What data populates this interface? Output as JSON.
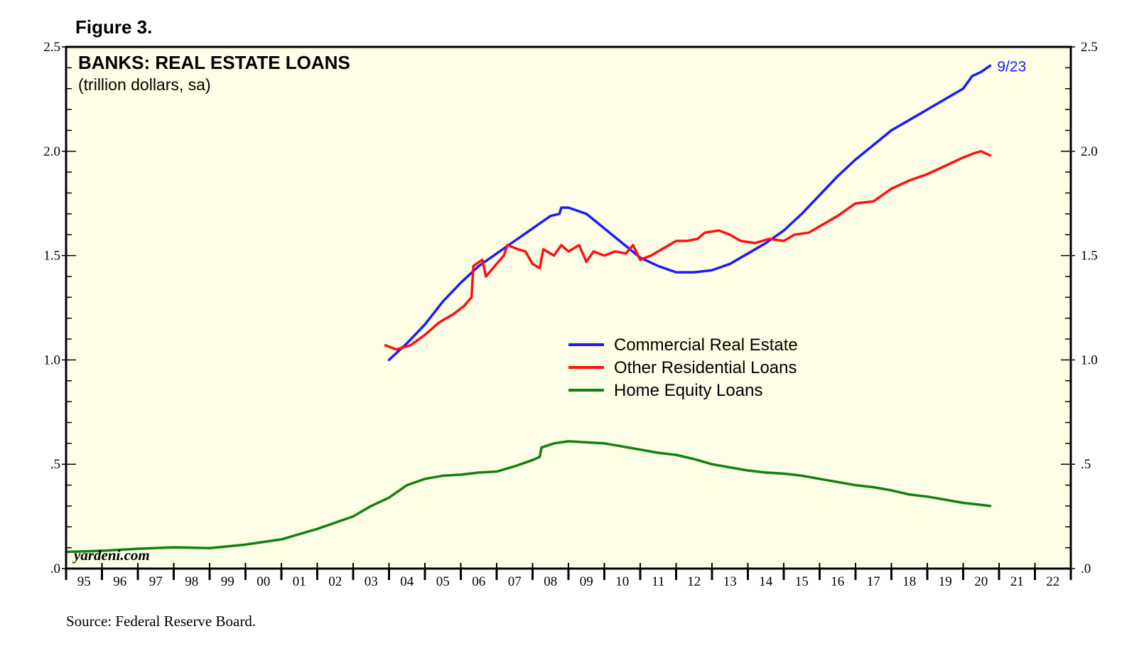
{
  "figure_label": "Figure 3.",
  "source": "Source: Federal Reserve Board.",
  "watermark": "yardeni.com",
  "colors": {
    "plot_background": "#fefde6",
    "commercial": "#1a1aff",
    "residential": "#ff1010",
    "home_equity": "#138013",
    "axis": "#000000"
  },
  "chart_data": {
    "type": "line",
    "title": "BANKS: REAL ESTATE LOANS",
    "subtitle": "(trillion dollars, sa)",
    "end_label": "9/23",
    "ylim": [
      0,
      2.5
    ],
    "xlim": [
      1995,
      2023
    ],
    "y_ticks": [
      0,
      0.5,
      1.0,
      1.5,
      2.0,
      2.5
    ],
    "y_tick_labels": [
      ".0",
      ".5",
      "1.0",
      "1.5",
      "2.0",
      "2.5"
    ],
    "x_tick_labels": [
      "95",
      "96",
      "97",
      "98",
      "99",
      "00",
      "01",
      "02",
      "03",
      "04",
      "05",
      "06",
      "07",
      "08",
      "09",
      "10",
      "11",
      "12",
      "13",
      "14",
      "15",
      "16",
      "17",
      "18",
      "19",
      "20",
      "21",
      "22"
    ],
    "grid": false,
    "legend_position": "center",
    "series": [
      {
        "name": "Commercial Real Estate",
        "color_key": "commercial",
        "points": [
          [
            2004.0,
            1.0
          ],
          [
            2004.5,
            1.08
          ],
          [
            2005.0,
            1.17
          ],
          [
            2005.5,
            1.28
          ],
          [
            2006.0,
            1.37
          ],
          [
            2006.5,
            1.45
          ],
          [
            2007.0,
            1.51
          ],
          [
            2007.5,
            1.57
          ],
          [
            2008.0,
            1.63
          ],
          [
            2008.5,
            1.69
          ],
          [
            2008.75,
            1.7
          ],
          [
            2008.8,
            1.73
          ],
          [
            2009.0,
            1.73
          ],
          [
            2009.5,
            1.7
          ],
          [
            2010.0,
            1.63
          ],
          [
            2010.5,
            1.56
          ],
          [
            2011.0,
            1.49
          ],
          [
            2011.5,
            1.45
          ],
          [
            2012.0,
            1.42
          ],
          [
            2012.5,
            1.42
          ],
          [
            2013.0,
            1.43
          ],
          [
            2013.5,
            1.46
          ],
          [
            2014.0,
            1.51
          ],
          [
            2014.5,
            1.56
          ],
          [
            2015.0,
            1.62
          ],
          [
            2015.5,
            1.7
          ],
          [
            2016.0,
            1.79
          ],
          [
            2016.5,
            1.88
          ],
          [
            2017.0,
            1.96
          ],
          [
            2017.5,
            2.03
          ],
          [
            2018.0,
            2.1
          ],
          [
            2018.5,
            2.15
          ],
          [
            2019.0,
            2.2
          ],
          [
            2019.5,
            2.25
          ],
          [
            2020.0,
            2.3
          ],
          [
            2020.25,
            2.36
          ],
          [
            2020.5,
            2.38
          ],
          [
            2020.75,
            2.41
          ]
        ]
      },
      {
        "name": "Other Residential Loans",
        "color_key": "residential",
        "points": [
          [
            2003.9,
            1.07
          ],
          [
            2004.2,
            1.05
          ],
          [
            2004.6,
            1.07
          ],
          [
            2005.0,
            1.12
          ],
          [
            2005.4,
            1.18
          ],
          [
            2005.8,
            1.22
          ],
          [
            2006.1,
            1.26
          ],
          [
            2006.3,
            1.3
          ],
          [
            2006.35,
            1.45
          ],
          [
            2006.6,
            1.48
          ],
          [
            2006.7,
            1.4
          ],
          [
            2007.0,
            1.46
          ],
          [
            2007.2,
            1.5
          ],
          [
            2007.3,
            1.55
          ],
          [
            2007.6,
            1.53
          ],
          [
            2007.8,
            1.52
          ],
          [
            2008.0,
            1.46
          ],
          [
            2008.2,
            1.44
          ],
          [
            2008.3,
            1.53
          ],
          [
            2008.6,
            1.5
          ],
          [
            2008.8,
            1.55
          ],
          [
            2009.0,
            1.52
          ],
          [
            2009.3,
            1.55
          ],
          [
            2009.5,
            1.47
          ],
          [
            2009.7,
            1.52
          ],
          [
            2010.0,
            1.5
          ],
          [
            2010.3,
            1.52
          ],
          [
            2010.6,
            1.51
          ],
          [
            2010.8,
            1.55
          ],
          [
            2011.0,
            1.48
          ],
          [
            2011.3,
            1.5
          ],
          [
            2011.6,
            1.53
          ],
          [
            2012.0,
            1.57
          ],
          [
            2012.3,
            1.57
          ],
          [
            2012.6,
            1.58
          ],
          [
            2012.8,
            1.61
          ],
          [
            2013.2,
            1.62
          ],
          [
            2013.5,
            1.6
          ],
          [
            2013.8,
            1.57
          ],
          [
            2014.2,
            1.56
          ],
          [
            2014.6,
            1.58
          ],
          [
            2015.0,
            1.57
          ],
          [
            2015.3,
            1.6
          ],
          [
            2015.7,
            1.61
          ],
          [
            2016.0,
            1.64
          ],
          [
            2016.5,
            1.69
          ],
          [
            2017.0,
            1.75
          ],
          [
            2017.5,
            1.76
          ],
          [
            2018.0,
            1.82
          ],
          [
            2018.5,
            1.86
          ],
          [
            2019.0,
            1.89
          ],
          [
            2019.5,
            1.93
          ],
          [
            2020.0,
            1.97
          ],
          [
            2020.3,
            1.99
          ],
          [
            2020.5,
            2.0
          ],
          [
            2020.75,
            1.98
          ]
        ]
      },
      {
        "name": "Home Equity Loans",
        "color_key": "home_equity",
        "points": [
          [
            1995.0,
            0.08
          ],
          [
            1996.0,
            0.085
          ],
          [
            1997.0,
            0.095
          ],
          [
            1998.0,
            0.102
          ],
          [
            1999.0,
            0.098
          ],
          [
            2000.0,
            0.115
          ],
          [
            2001.0,
            0.14
          ],
          [
            2002.0,
            0.19
          ],
          [
            2003.0,
            0.25
          ],
          [
            2003.5,
            0.3
          ],
          [
            2004.0,
            0.34
          ],
          [
            2004.5,
            0.4
          ],
          [
            2005.0,
            0.43
          ],
          [
            2005.5,
            0.445
          ],
          [
            2006.0,
            0.45
          ],
          [
            2006.5,
            0.46
          ],
          [
            2007.0,
            0.465
          ],
          [
            2007.5,
            0.49
          ],
          [
            2008.0,
            0.52
          ],
          [
            2008.2,
            0.535
          ],
          [
            2008.25,
            0.58
          ],
          [
            2008.6,
            0.6
          ],
          [
            2009.0,
            0.61
          ],
          [
            2009.5,
            0.605
          ],
          [
            2010.0,
            0.6
          ],
          [
            2010.5,
            0.585
          ],
          [
            2011.0,
            0.57
          ],
          [
            2011.5,
            0.555
          ],
          [
            2012.0,
            0.545
          ],
          [
            2012.5,
            0.525
          ],
          [
            2013.0,
            0.5
          ],
          [
            2013.5,
            0.485
          ],
          [
            2014.0,
            0.47
          ],
          [
            2014.5,
            0.46
          ],
          [
            2015.0,
            0.455
          ],
          [
            2015.5,
            0.445
          ],
          [
            2016.0,
            0.43
          ],
          [
            2016.5,
            0.415
          ],
          [
            2017.0,
            0.4
          ],
          [
            2017.5,
            0.39
          ],
          [
            2018.0,
            0.375
          ],
          [
            2018.5,
            0.355
          ],
          [
            2019.0,
            0.345
          ],
          [
            2019.5,
            0.33
          ],
          [
            2020.0,
            0.315
          ],
          [
            2020.75,
            0.3
          ]
        ]
      }
    ]
  }
}
